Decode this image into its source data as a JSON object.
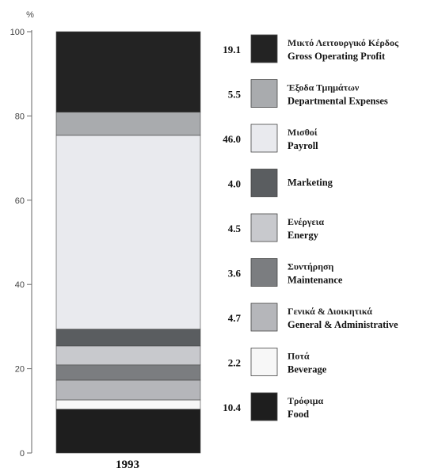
{
  "chart_data": {
    "type": "bar",
    "stacked": true,
    "categories": [
      "1993"
    ],
    "y_unit": "%",
    "ylim": [
      0,
      100
    ],
    "yticks": [
      0,
      20,
      40,
      60,
      80,
      100
    ],
    "grid": false,
    "legend_position": "right",
    "series": [
      {
        "greek": "Τρόφιμα",
        "name": "Food",
        "value": 10.4,
        "label": "10.4",
        "color": "#1e1e1e"
      },
      {
        "greek": "Ποτά",
        "name": "Beverage",
        "value": 2.2,
        "label": "2.2",
        "color": "#f7f7f7"
      },
      {
        "greek": "Γενικά & Διοικητικά",
        "name": "General & Administrative",
        "value": 4.7,
        "label": "4.7",
        "color": "#b5b6ba"
      },
      {
        "greek": "Συντήρηση",
        "name": "Maintenance",
        "value": 3.6,
        "label": "3.6",
        "color": "#7b7d80"
      },
      {
        "greek": "Ενέργεια",
        "name": "Energy",
        "value": 4.5,
        "label": "4.5",
        "color": "#c8c9cd"
      },
      {
        "greek": "Marketing",
        "name": "",
        "value": 4.0,
        "label": "4.0",
        "color": "#5a5d60"
      },
      {
        "greek": "Μισθοί",
        "name": "Payroll",
        "value": 46.0,
        "label": "46.0",
        "color": "#e9eaee"
      },
      {
        "greek": "Έξοδα Τμημάτων",
        "name": "Departmental Expenses",
        "value": 5.5,
        "label": "5.5",
        "color": "#a9abae"
      },
      {
        "greek": "Μικτό Λειτουργικό Κέρδος",
        "name": "Gross Operating Profit",
        "value": 19.1,
        "label": "19.1",
        "color": "#232323"
      }
    ]
  }
}
